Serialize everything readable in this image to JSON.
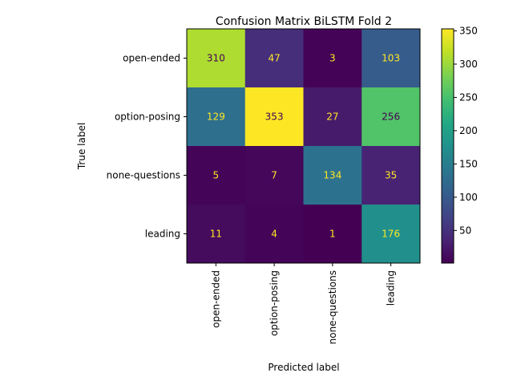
{
  "chart_data": {
    "type": "heatmap",
    "title": "Confusion Matrix BiLSTM Fold 2",
    "xlabel": "Predicted label",
    "ylabel": "True label",
    "x_categories": [
      "open-ended",
      "option-posing",
      "none-questions",
      "leading"
    ],
    "y_categories": [
      "open-ended",
      "option-posing",
      "none-questions",
      "leading"
    ],
    "matrix": [
      [
        310,
        47,
        3,
        103
      ],
      [
        129,
        353,
        27,
        256
      ],
      [
        5,
        7,
        134,
        35
      ],
      [
        11,
        4,
        1,
        176
      ]
    ],
    "colormap": "viridis",
    "colorbar": {
      "range": [
        1,
        353
      ],
      "ticks": [
        50,
        100,
        150,
        200,
        250,
        300,
        350
      ]
    },
    "grid": false
  }
}
